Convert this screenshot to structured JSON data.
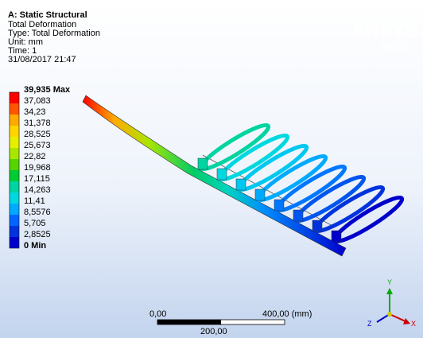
{
  "header": {
    "title": "A: Static Structural",
    "lines": [
      "Total Deformation",
      "Type: Total Deformation",
      "Unit: mm",
      "Time: 1",
      "31/08/2017 21:47"
    ]
  },
  "logo": {
    "name": "ANSYS",
    "version": "R15.0"
  },
  "legend": {
    "labels": [
      "39,935 Max",
      "37,083",
      "34,23",
      "31,378",
      "28,525",
      "25,673",
      "22,82",
      "19,968",
      "17,115",
      "14,263",
      "11,41",
      "8,5576",
      "5,705",
      "2,8525",
      "0 Min"
    ],
    "colors": [
      "#ff0000",
      "#ff5500",
      "#ffaa00",
      "#ffd500",
      "#e5f000",
      "#aae600",
      "#55d400",
      "#00cc33",
      "#00d4a0",
      "#00d8e0",
      "#00aaff",
      "#0066ff",
      "#0033dd",
      "#0000cc"
    ]
  },
  "scale": {
    "start": "0,00",
    "end": "400,00 (mm)",
    "middle": "200,00"
  },
  "axes": {
    "y": "Y",
    "z": "Z",
    "x": "X"
  }
}
